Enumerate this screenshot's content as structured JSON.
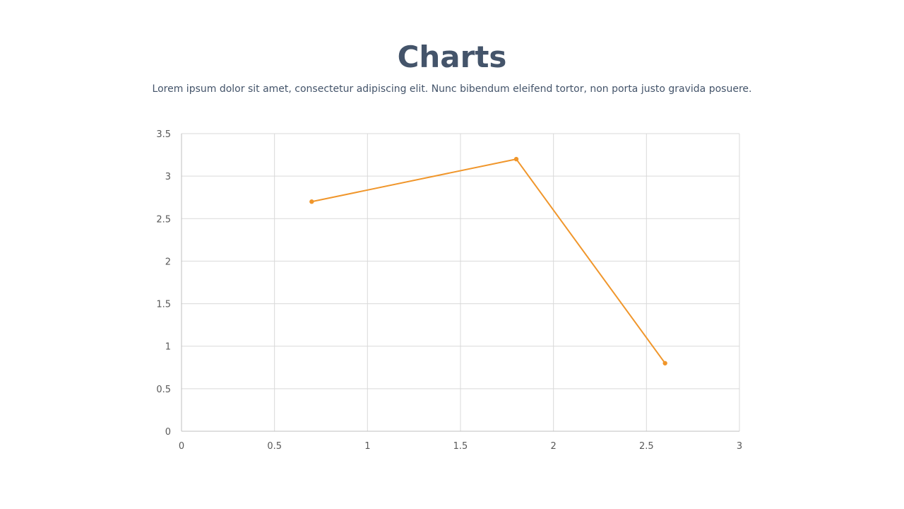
{
  "slide": {
    "title": "Charts",
    "subtitle": "Lorem ipsum dolor sit amet, consectetur adipiscing elit. Nunc bibendum eleifend tortor, non porta justo gravida posuere."
  },
  "colors": {
    "title": "#44546a",
    "series": "#f0962b",
    "grid": "#d9d9d9",
    "tick_text": "#595959"
  },
  "chart_data": {
    "type": "scatter",
    "title": "",
    "xlabel": "",
    "ylabel": "",
    "xlim": [
      0,
      3
    ],
    "ylim": [
      0,
      3.5
    ],
    "xticks": [
      "0",
      "0.5",
      "1",
      "1.5",
      "2",
      "2.5",
      "3"
    ],
    "yticks": [
      "0",
      "0.5",
      "1",
      "1.5",
      "2",
      "2.5",
      "3",
      "3.5"
    ],
    "grid": true,
    "legend": "none",
    "series": [
      {
        "points": [
          {
            "x": 0.7,
            "y": 2.7
          },
          {
            "x": 1.8,
            "y": 3.2
          },
          {
            "x": 2.6,
            "y": 0.8
          }
        ],
        "lines": true,
        "markers": true
      }
    ]
  }
}
